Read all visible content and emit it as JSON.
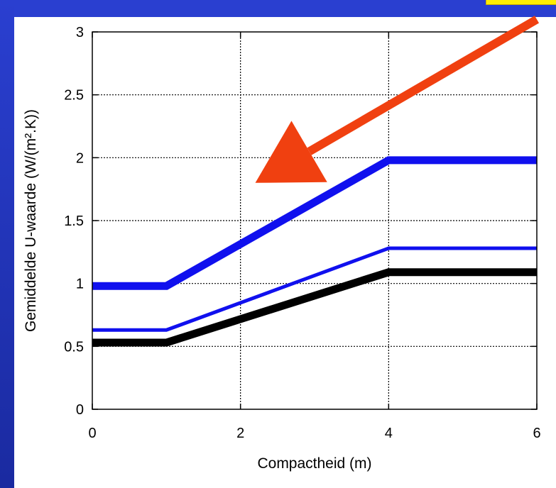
{
  "chart_data": {
    "type": "line",
    "xlabel": "Compactheid (m)",
    "ylabel": "Gemiddelde U-waarde (W/(m².K))",
    "xlim": [
      0,
      6
    ],
    "ylim": [
      0,
      3
    ],
    "xticks": [
      0,
      2,
      4,
      6
    ],
    "xtick_labels": [
      "0",
      "2",
      "4",
      "6"
    ],
    "yticks": [
      0,
      0.5,
      1,
      1.5,
      2,
      2.5,
      3
    ],
    "ytick_labels": [
      "0",
      "0.5",
      "1",
      "1.5",
      "2",
      "2.5",
      "3"
    ],
    "grid": true,
    "series": [
      {
        "color": "#1010ee",
        "style": "thick",
        "x": [
          0,
          1,
          4,
          6
        ],
        "y": [
          0.98,
          0.98,
          1.98,
          1.98
        ]
      },
      {
        "color": "#1010ee",
        "style": "thin",
        "x": [
          0,
          1,
          4,
          6
        ],
        "y": [
          0.63,
          0.63,
          1.28,
          1.28
        ]
      },
      {
        "color": "#000000",
        "style": "thick",
        "x": [
          0,
          1,
          4,
          6
        ],
        "y": [
          0.53,
          0.53,
          1.09,
          1.09
        ]
      }
    ],
    "annotations": [
      {
        "type": "arrow",
        "color": "#f04010",
        "from": [
          6,
          3.1
        ],
        "to": [
          2.2,
          1.8
        ]
      }
    ]
  }
}
